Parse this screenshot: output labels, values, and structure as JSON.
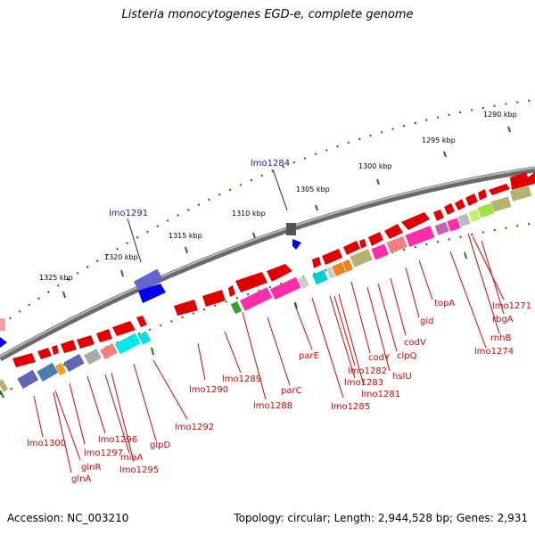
{
  "title": "Listeria monocytogenes EGD-e, complete genome",
  "accession": "Accession: NC_003210",
  "topology": "Topology: circular; Length: 2,944,528 bp; Genes: 2,931",
  "colors": {
    "backbone": "#888888",
    "forward_gene": "#e00000",
    "blue_gene": "#0000ee",
    "red_label": "#dd0000",
    "blue_label": "#1a1aa6",
    "tick": "#1a7a1a"
  },
  "scale_labels": [
    "1290 kbp",
    "1295 kbp",
    "1300 kbp",
    "1305 kbp",
    "1310 kbp",
    "1315 kbp",
    "1320 kbp",
    "1325 kbp"
  ],
  "red_gene_labels": [
    "lmo1271",
    "rbgA",
    "rnhB",
    "lmo1274",
    "topA",
    "gid",
    "codV",
    "clpQ",
    "hslU",
    "codY",
    "lmo1281",
    "lmo1282",
    "lmo1283",
    "parE",
    "lmo1285",
    "parC",
    "lmo1288",
    "lmo1289",
    "lmo1290",
    "lmo1292",
    "glpD",
    "lmo1295",
    "miaA",
    "lmo1296",
    "lmo1297",
    "glnR",
    "glnA",
    "lmo1300"
  ],
  "blue_gene_labels": [
    "lmo1284",
    "lmo1291"
  ]
}
